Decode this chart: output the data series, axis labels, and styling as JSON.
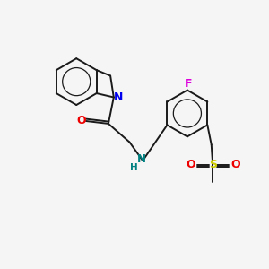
{
  "background_color": "#f5f5f5",
  "bond_color": "#1a1a1a",
  "atom_colors": {
    "N_indoline": "#0000ee",
    "N_amine": "#008080",
    "O": "#ee0000",
    "F": "#dd00dd",
    "S": "#cccc00",
    "H": "#008080"
  },
  "figsize": [
    3.0,
    3.0
  ],
  "dpi": 100
}
